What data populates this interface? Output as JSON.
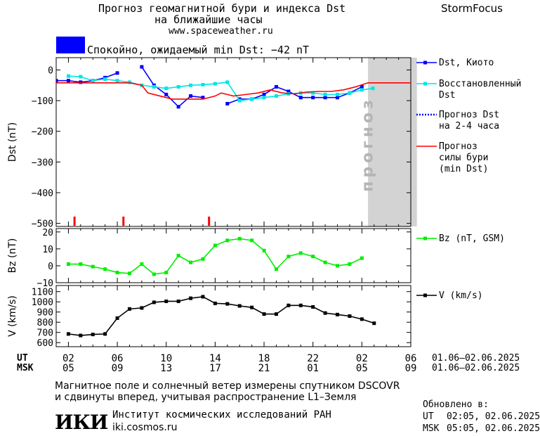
{
  "header": {
    "title_line1": "Прогноз геомагнитной бури и индекса Dst",
    "title_line2": "на ближайшие часы",
    "site": "www.spaceweather.ru",
    "brand": "StormFocus",
    "status_text": "Спокойно, ожидаемый min Dst: −42 nT",
    "status_color": "#0000ff"
  },
  "legend": {
    "dst_kyoto": "Dst, Киото",
    "restored_1": "Восстановленный",
    "restored_2": "Dst",
    "forecast_1": "Прогноз Dst",
    "forecast_2": "на 2-4 часа",
    "storm_1": "Прогноз",
    "storm_2": "силы бури",
    "storm_3": "(min Dst)",
    "bz": "Bz (nT, GSM)",
    "v": "V (km/s)",
    "forecast_band_label": "прогноз"
  },
  "axes": {
    "ut_label": "UT",
    "msk_label": "MSK",
    "ut_ticks": [
      "02",
      "06",
      "10",
      "14",
      "18",
      "22",
      "02",
      "06"
    ],
    "msk_ticks": [
      "05",
      "09",
      "13",
      "17",
      "21",
      "01",
      "05",
      "09"
    ],
    "date_range_ut": "01.06–02.06.2025",
    "date_range_msk": "01.06–02.06.2025"
  },
  "footer": {
    "line1": "Магнитное поле и солнечный ветер измерены спутником DSCOVR",
    "line2": "и сдвинуты вперед, учитывая распространение L1–Земля",
    "updated_label": "Обновлено в:",
    "updated_ut_label": "UT",
    "updated_ut": "02:05, 02.06.2025",
    "updated_msk_label": "MSK",
    "updated_msk": "05:05, 02.06.2025",
    "logo_text": "ИКИ",
    "institute": "Институт космических исследований РАН",
    "institute_site": "iki.cosmos.ru"
  },
  "chart_data": [
    {
      "type": "line",
      "ylabel": "Dst (nT)",
      "ylim": [
        -510,
        40
      ],
      "yticks": [
        0,
        -100,
        -200,
        -300,
        -400,
        -500
      ],
      "x_unit": "hours UT from 01.06 02:00",
      "forecast_region_x": [
        24.5,
        28.5
      ],
      "storm_markers_x": [
        0.5,
        4.5,
        11.5
      ],
      "series": [
        {
          "name": "Dst, Киото",
          "color": "#0000ff",
          "marker": "square",
          "segments": [
            [
              [
                -1,
                -35
              ],
              [
                0,
                -35
              ],
              [
                1,
                -40
              ],
              [
                2,
                -35
              ],
              [
                3,
                -25
              ],
              [
                4,
                -10
              ]
            ],
            [
              [
                6,
                10
              ],
              [
                7,
                -50
              ],
              [
                8,
                -80
              ],
              [
                9,
                -120
              ],
              [
                10,
                -85
              ],
              [
                11,
                -90
              ]
            ],
            [
              [
                13,
                -110
              ],
              [
                14,
                -95
              ],
              [
                15,
                -95
              ],
              [
                16,
                -80
              ],
              [
                17,
                -55
              ],
              [
                18,
                -70
              ],
              [
                19,
                -90
              ],
              [
                20,
                -90
              ],
              [
                21,
                -90
              ],
              [
                22,
                -90
              ],
              [
                23,
                -75
              ],
              [
                24,
                -55
              ]
            ]
          ]
        },
        {
          "name": "Восстановленный Dst",
          "color": "#00e5e5",
          "marker": "square",
          "segments": [
            [
              [
                0,
                -20
              ],
              [
                1,
                -22
              ],
              [
                2,
                -35
              ],
              [
                3,
                -30
              ],
              [
                4,
                -35
              ],
              [
                5,
                -40
              ],
              [
                6,
                -50
              ],
              [
                7,
                -55
              ],
              [
                8,
                -60
              ],
              [
                9,
                -55
              ],
              [
                10,
                -50
              ],
              [
                11,
                -48
              ],
              [
                12,
                -45
              ],
              [
                13,
                -40
              ],
              [
                14,
                -100
              ],
              [
                15,
                -95
              ],
              [
                16,
                -90
              ],
              [
                17,
                -85
              ],
              [
                18,
                -78
              ],
              [
                19,
                -75
              ],
              [
                20,
                -75
              ],
              [
                21,
                -80
              ],
              [
                22,
                -80
              ],
              [
                23,
                -75
              ],
              [
                24,
                -65
              ],
              [
                24.9,
                -60
              ]
            ]
          ]
        },
        {
          "name": "Прогноз силы бури (min Dst)",
          "color": "#ff0000",
          "marker": "none",
          "segments": [
            [
              [
                -1,
                -42
              ],
              [
                5,
                -42
              ],
              [
                6,
                -50
              ],
              [
                6.5,
                -75
              ],
              [
                7.5,
                -85
              ],
              [
                8.5,
                -95
              ],
              [
                11,
                -95
              ],
              [
                11.5,
                -90
              ],
              [
                12,
                -85
              ],
              [
                12.5,
                -75
              ],
              [
                13,
                -80
              ],
              [
                13.5,
                -85
              ],
              [
                14.5,
                -80
              ],
              [
                15.5,
                -75
              ],
              [
                16.5,
                -65
              ],
              [
                17.5,
                -75
              ],
              [
                18.5,
                -78
              ],
              [
                19.5,
                -72
              ],
              [
                20.5,
                -70
              ],
              [
                21.5,
                -70
              ],
              [
                22.5,
                -65
              ],
              [
                23.5,
                -55
              ],
              [
                24.5,
                -42
              ],
              [
                28.5,
                -42
              ]
            ]
          ]
        }
      ]
    },
    {
      "type": "line",
      "ylabel": "Bz (nT)",
      "ylim": [
        -10,
        22
      ],
      "yticks": [
        20,
        10,
        0,
        -10
      ],
      "series": [
        {
          "name": "Bz (nT, GSM)",
          "color": "#00ee00",
          "marker": "square",
          "segments": [
            [
              [
                0,
                1
              ],
              [
                1,
                1
              ],
              [
                2,
                -0.5
              ],
              [
                3,
                -2
              ],
              [
                4,
                -4
              ],
              [
                5,
                -4.5
              ],
              [
                6,
                1
              ],
              [
                7,
                -5
              ],
              [
                8,
                -4
              ],
              [
                9,
                6
              ],
              [
                10,
                2
              ],
              [
                11,
                4
              ],
              [
                12,
                12
              ],
              [
                13,
                15
              ],
              [
                14,
                16
              ],
              [
                15,
                15
              ],
              [
                16,
                9
              ],
              [
                17,
                -2
              ],
              [
                18,
                5.5
              ],
              [
                19,
                7.5
              ],
              [
                20,
                5.5
              ],
              [
                21,
                2
              ],
              [
                22,
                0
              ],
              [
                23,
                1
              ],
              [
                24,
                4.5
              ]
            ]
          ]
        }
      ]
    },
    {
      "type": "line",
      "ylabel": "V (km/s)",
      "ylim": [
        560,
        1160
      ],
      "yticks": [
        1100,
        1000,
        900,
        800,
        700,
        600
      ],
      "series": [
        {
          "name": "V (km/s)",
          "color": "#000000",
          "marker": "square",
          "segments": [
            [
              [
                0,
                685
              ],
              [
                1,
                670
              ],
              [
                2,
                680
              ],
              [
                3,
                685
              ],
              [
                4,
                840
              ],
              [
                5,
                930
              ],
              [
                6,
                940
              ],
              [
                7,
                995
              ],
              [
                8,
                1005
              ],
              [
                9,
                1005
              ],
              [
                10,
                1035
              ],
              [
                11,
                1050
              ],
              [
                12,
                985
              ],
              [
                13,
                980
              ],
              [
                14,
                960
              ],
              [
                15,
                945
              ],
              [
                16,
                880
              ],
              [
                17,
                880
              ],
              [
                18,
                965
              ],
              [
                19,
                965
              ],
              [
                20,
                950
              ],
              [
                21,
                890
              ],
              [
                22,
                875
              ],
              [
                23,
                860
              ],
              [
                24,
                830
              ],
              [
                25,
                790
              ]
            ]
          ]
        }
      ]
    }
  ]
}
